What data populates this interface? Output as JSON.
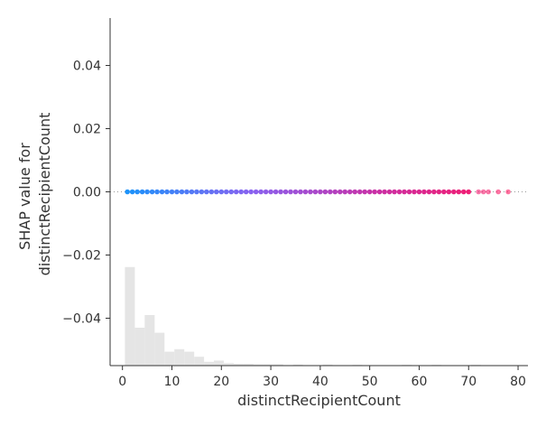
{
  "chart_data": {
    "type": "scatter",
    "xlabel": "distinctRecipientCount",
    "ylabel_lines": [
      "SHAP value for",
      "distinctRecipientCount"
    ],
    "xlim": [
      -2.5,
      82
    ],
    "ylim": [
      -0.055,
      0.055
    ],
    "xticks": [
      0,
      10,
      20,
      30,
      40,
      50,
      60,
      70,
      80
    ],
    "ytick_values": [
      0.04,
      0.02,
      0.0,
      -0.02,
      -0.04
    ],
    "ytick_labels": [
      "0.04",
      "0.02",
      "0.00",
      "−0.02",
      "−0.04"
    ],
    "grid": false,
    "color_gradient": [
      "#008afb",
      "#7c52f0",
      "#c71a9b",
      "#ff0052"
    ],
    "color_range": [
      0,
      78
    ],
    "points": [
      {
        "x": 1,
        "y": 0
      },
      {
        "x": 2,
        "y": 0
      },
      {
        "x": 3,
        "y": 0
      },
      {
        "x": 4,
        "y": 0
      },
      {
        "x": 5,
        "y": 0
      },
      {
        "x": 6,
        "y": 0
      },
      {
        "x": 7,
        "y": 0
      },
      {
        "x": 8,
        "y": 0
      },
      {
        "x": 9,
        "y": 0
      },
      {
        "x": 10,
        "y": 0
      },
      {
        "x": 11,
        "y": 0
      },
      {
        "x": 12,
        "y": 0
      },
      {
        "x": 13,
        "y": 0
      },
      {
        "x": 14,
        "y": 0
      },
      {
        "x": 15,
        "y": 0
      },
      {
        "x": 16,
        "y": 0
      },
      {
        "x": 17,
        "y": 0
      },
      {
        "x": 18,
        "y": 0
      },
      {
        "x": 19,
        "y": 0
      },
      {
        "x": 20,
        "y": 0
      },
      {
        "x": 21,
        "y": 0
      },
      {
        "x": 22,
        "y": 0
      },
      {
        "x": 23,
        "y": 0
      },
      {
        "x": 24,
        "y": 0
      },
      {
        "x": 25,
        "y": 0
      },
      {
        "x": 26,
        "y": 0
      },
      {
        "x": 27,
        "y": 0
      },
      {
        "x": 28,
        "y": 0
      },
      {
        "x": 29,
        "y": 0
      },
      {
        "x": 30,
        "y": 0
      },
      {
        "x": 31,
        "y": 0
      },
      {
        "x": 32,
        "y": 0
      },
      {
        "x": 33,
        "y": 0
      },
      {
        "x": 34,
        "y": 0
      },
      {
        "x": 35,
        "y": 0
      },
      {
        "x": 36,
        "y": 0
      },
      {
        "x": 37,
        "y": 0
      },
      {
        "x": 38,
        "y": 0
      },
      {
        "x": 39,
        "y": 0
      },
      {
        "x": 40,
        "y": 0
      },
      {
        "x": 41,
        "y": 0
      },
      {
        "x": 42,
        "y": 0
      },
      {
        "x": 43,
        "y": 0
      },
      {
        "x": 44,
        "y": 0
      },
      {
        "x": 45,
        "y": 0
      },
      {
        "x": 46,
        "y": 0
      },
      {
        "x": 47,
        "y": 0
      },
      {
        "x": 48,
        "y": 0
      },
      {
        "x": 49,
        "y": 0
      },
      {
        "x": 50,
        "y": 0
      },
      {
        "x": 51,
        "y": 0
      },
      {
        "x": 52,
        "y": 0
      },
      {
        "x": 53,
        "y": 0
      },
      {
        "x": 54,
        "y": 0
      },
      {
        "x": 55,
        "y": 0
      },
      {
        "x": 56,
        "y": 0
      },
      {
        "x": 57,
        "y": 0
      },
      {
        "x": 58,
        "y": 0
      },
      {
        "x": 59,
        "y": 0
      },
      {
        "x": 60,
        "y": 0
      },
      {
        "x": 61,
        "y": 0
      },
      {
        "x": 62,
        "y": 0
      },
      {
        "x": 63,
        "y": 0
      },
      {
        "x": 64,
        "y": 0
      },
      {
        "x": 65,
        "y": 0
      },
      {
        "x": 66,
        "y": 0
      },
      {
        "x": 67,
        "y": 0
      },
      {
        "x": 68,
        "y": 0
      },
      {
        "x": 69,
        "y": 0
      },
      {
        "x": 70,
        "y": 0
      },
      {
        "x": 72,
        "y": 0
      },
      {
        "x": 73,
        "y": 0
      },
      {
        "x": 74,
        "y": 0
      },
      {
        "x": 76,
        "y": 0
      },
      {
        "x": 78,
        "y": 0
      }
    ],
    "histogram": {
      "bin_width": 2,
      "bins": [
        {
          "x0": 0.5,
          "height": 0.78
        },
        {
          "x0": 2.5,
          "height": 0.3
        },
        {
          "x0": 4.5,
          "height": 0.4
        },
        {
          "x0": 6.5,
          "height": 0.26
        },
        {
          "x0": 8.5,
          "height": 0.11
        },
        {
          "x0": 10.5,
          "height": 0.13
        },
        {
          "x0": 12.5,
          "height": 0.11
        },
        {
          "x0": 14.5,
          "height": 0.07
        },
        {
          "x0": 16.5,
          "height": 0.03
        },
        {
          "x0": 18.5,
          "height": 0.04
        },
        {
          "x0": 20.5,
          "height": 0.02
        },
        {
          "x0": 22.5,
          "height": 0.015
        },
        {
          "x0": 24.5,
          "height": 0.015
        },
        {
          "x0": 26.5,
          "height": 0.01
        },
        {
          "x0": 28.5,
          "height": 0.01
        },
        {
          "x0": 30.5,
          "height": 0.01
        },
        {
          "x0": 34.5,
          "height": 0.008
        },
        {
          "x0": 40.5,
          "height": 0.008
        },
        {
          "x0": 46.5,
          "height": 0.006
        },
        {
          "x0": 56.5,
          "height": 0.006
        },
        {
          "x0": 62.5,
          "height": 0.006
        },
        {
          "x0": 70.5,
          "height": 0.006
        }
      ]
    }
  }
}
